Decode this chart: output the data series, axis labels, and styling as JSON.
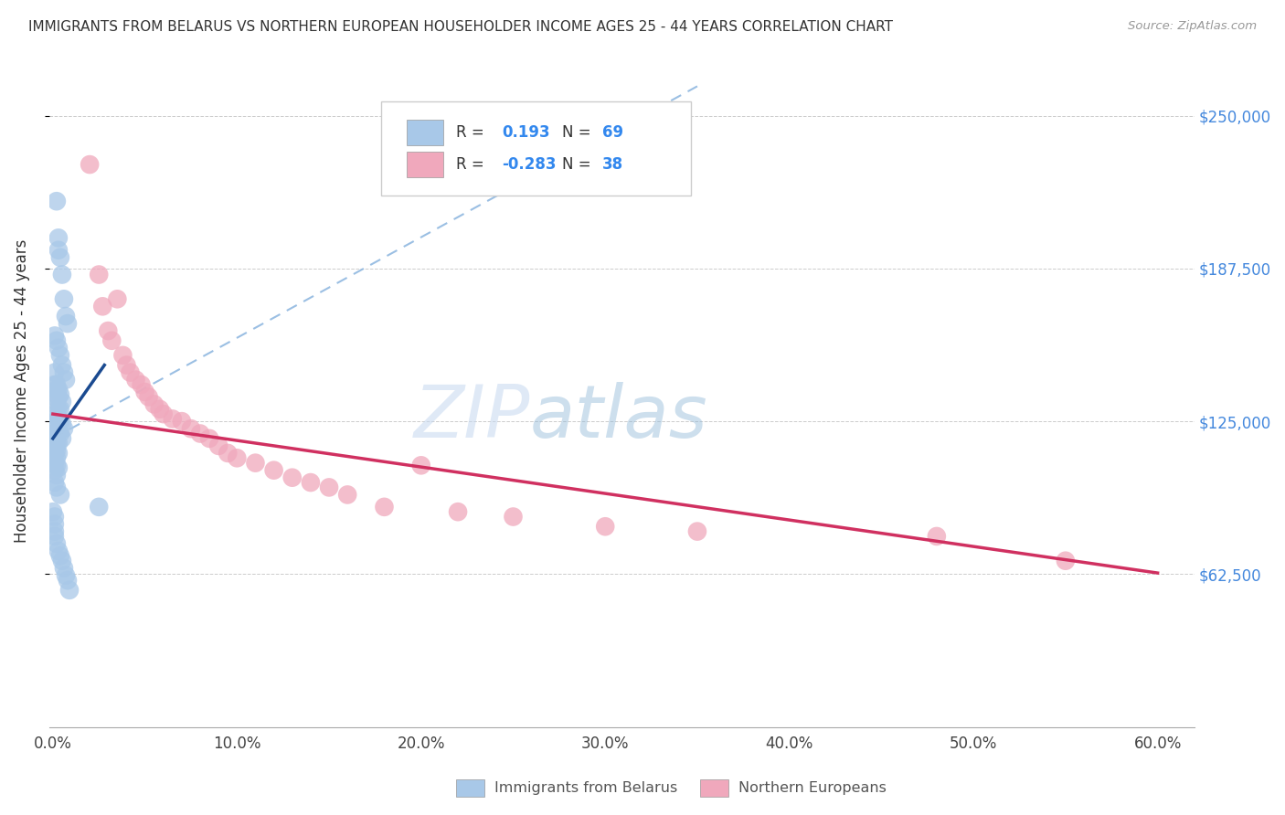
{
  "title": "IMMIGRANTS FROM BELARUS VS NORTHERN EUROPEAN HOUSEHOLDER INCOME AGES 25 - 44 YEARS CORRELATION CHART",
  "source": "Source: ZipAtlas.com",
  "ylabel": "Householder Income Ages 25 - 44 years",
  "ytick_labels": [
    "$62,500",
    "$125,000",
    "$187,500",
    "$250,000"
  ],
  "ytick_vals": [
    62500,
    125000,
    187500,
    250000
  ],
  "ylim": [
    0,
    275000
  ],
  "xlim": [
    -0.002,
    0.62
  ],
  "xtick_vals": [
    0.0,
    0.1,
    0.2,
    0.3,
    0.4,
    0.5,
    0.6
  ],
  "xtick_labels": [
    "0.0%",
    "10.0%",
    "20.0%",
    "30.0%",
    "40.0%",
    "50.0%",
    "60.0%"
  ],
  "R_belarus": 0.193,
  "N_belarus": 69,
  "R_northern": -0.283,
  "N_northern": 38,
  "watermark_zip": "ZIP",
  "watermark_atlas": "atlas",
  "legend_label_1": "Immigrants from Belarus",
  "legend_label_2": "Northern Europeans",
  "blue_color": "#a8c8e8",
  "pink_color": "#f0a8bc",
  "blue_line_color": "#1a4a90",
  "pink_line_color": "#d03060",
  "dashed_line_color": "#90b8e0",
  "blue_line_x": [
    0.0,
    0.028
  ],
  "blue_line_y": [
    118000,
    148000
  ],
  "pink_line_x": [
    0.0,
    0.6
  ],
  "pink_line_y": [
    128000,
    63000
  ],
  "dash_line_x": [
    0.0,
    0.35
  ],
  "dash_line_y": [
    118000,
    262000
  ],
  "belarus_x": [
    0.002,
    0.003,
    0.003,
    0.004,
    0.005,
    0.006,
    0.007,
    0.008,
    0.001,
    0.002,
    0.003,
    0.004,
    0.005,
    0.006,
    0.007,
    0.001,
    0.002,
    0.003,
    0.004,
    0.005,
    0.001,
    0.002,
    0.003,
    0.004,
    0.001,
    0.002,
    0.003,
    0.002,
    0.003,
    0.004,
    0.005,
    0.006,
    0.001,
    0.002,
    0.003,
    0.004,
    0.005,
    0.001,
    0.002,
    0.003,
    0.001,
    0.002,
    0.001,
    0.002,
    0.003,
    0.001,
    0.002,
    0.001,
    0.002,
    0.003,
    0.001,
    0.002,
    0.001,
    0.002,
    0.004,
    0.025,
    0.0,
    0.001,
    0.001,
    0.001,
    0.001,
    0.002,
    0.003,
    0.004,
    0.005,
    0.006,
    0.007,
    0.008,
    0.009
  ],
  "belarus_y": [
    215000,
    200000,
    195000,
    192000,
    185000,
    175000,
    168000,
    165000,
    160000,
    158000,
    155000,
    152000,
    148000,
    145000,
    142000,
    145000,
    140000,
    138000,
    136000,
    133000,
    140000,
    138000,
    135000,
    130000,
    135000,
    133000,
    130000,
    128000,
    126000,
    125000,
    124000,
    122000,
    125000,
    123000,
    121000,
    120000,
    118000,
    120000,
    118000,
    116000,
    118000,
    116000,
    115000,
    113000,
    112000,
    112000,
    110000,
    108000,
    107000,
    106000,
    105000,
    103000,
    100000,
    98000,
    95000,
    90000,
    88000,
    86000,
    83000,
    80000,
    78000,
    75000,
    72000,
    70000,
    68000,
    65000,
    62000,
    60000,
    56000
  ],
  "northern_x": [
    0.02,
    0.025,
    0.027,
    0.03,
    0.032,
    0.035,
    0.038,
    0.04,
    0.042,
    0.045,
    0.048,
    0.05,
    0.052,
    0.055,
    0.058,
    0.06,
    0.065,
    0.07,
    0.075,
    0.08,
    0.085,
    0.09,
    0.095,
    0.1,
    0.11,
    0.12,
    0.13,
    0.14,
    0.15,
    0.16,
    0.18,
    0.2,
    0.22,
    0.25,
    0.3,
    0.35,
    0.48,
    0.55
  ],
  "northern_y": [
    230000,
    185000,
    172000,
    162000,
    158000,
    175000,
    152000,
    148000,
    145000,
    142000,
    140000,
    137000,
    135000,
    132000,
    130000,
    128000,
    126000,
    125000,
    122000,
    120000,
    118000,
    115000,
    112000,
    110000,
    108000,
    105000,
    102000,
    100000,
    98000,
    95000,
    90000,
    107000,
    88000,
    86000,
    82000,
    80000,
    78000,
    68000
  ]
}
